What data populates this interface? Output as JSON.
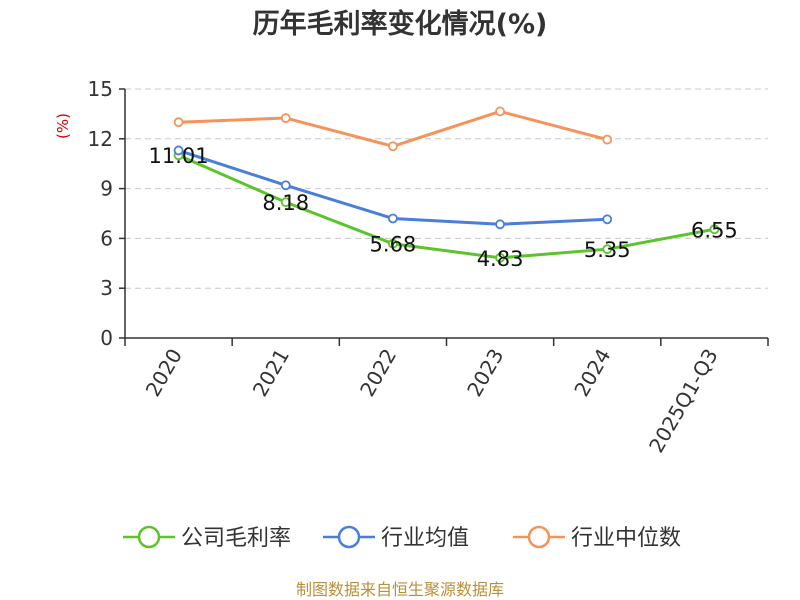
{
  "chart_data": {
    "type": "line",
    "title": "历年毛利率变化情况(%)",
    "ylabel": "(%)",
    "categories": [
      "2020",
      "2021",
      "2022",
      "2023",
      "2024",
      "2025Q1-Q3"
    ],
    "ylim": [
      0,
      15
    ],
    "yticks": [
      0,
      3,
      6,
      9,
      12,
      15
    ],
    "grid": true,
    "legend_position": "bottom",
    "series": [
      {
        "name": "公司毛利率",
        "color": "#5cc32c",
        "values": [
          11.01,
          8.18,
          5.68,
          4.83,
          5.35,
          6.55
        ],
        "labels": [
          "11.01",
          "8.18",
          "5.68",
          "4.83",
          "5.35",
          "6.55"
        ]
      },
      {
        "name": "行业均值",
        "color": "#4a7fd8",
        "values": [
          11.3,
          9.2,
          7.2,
          6.85,
          7.15,
          null
        ]
      },
      {
        "name": "行业中位数",
        "color": "#f4935a",
        "values": [
          13.0,
          13.25,
          11.55,
          13.65,
          11.95,
          null
        ]
      }
    ],
    "source": "制图数据来自恒生聚源数据库"
  }
}
